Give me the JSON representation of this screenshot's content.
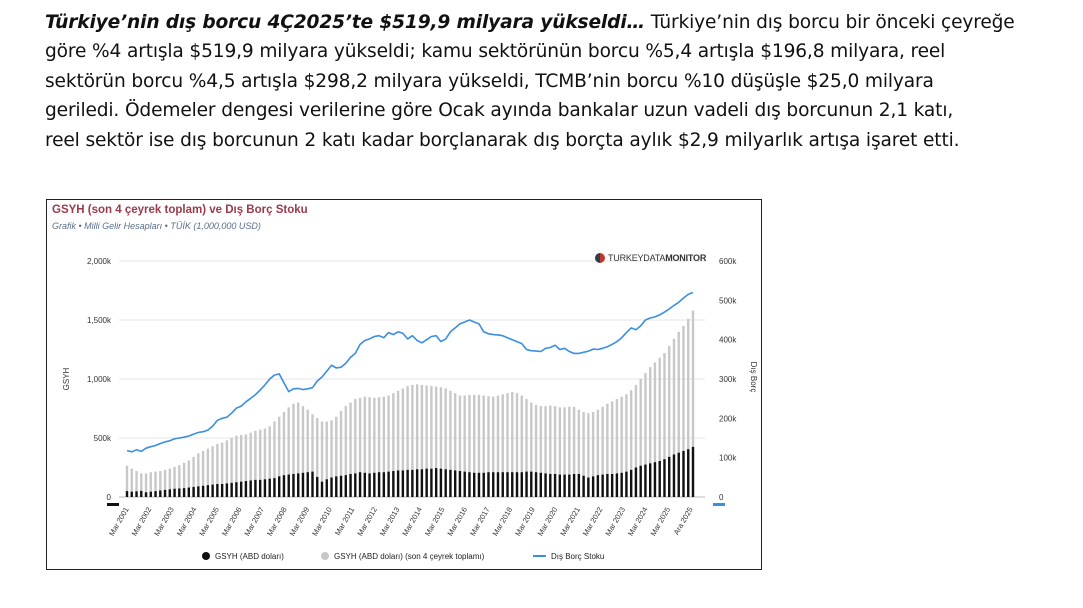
{
  "paragraph": {
    "line1_bold": "Türkiye’nin dış borcu 4Ç2025’te $519,9 milyara yükseldi…",
    "line1_rest": " Türkiye’nin dış borcu bir önceki çeyreğe",
    "line2": "göre %4 artışla $519,9 milyara yükseldi; kamu sektörünün borcu %5,4 artışla $196,8 milyara, reel",
    "line3": "sektörün borcu %4,5 artışla $298,2 milyara yükseldi, TCMB’nin borcu %10 düşüşle $25,0 milyara",
    "line4": "geriledi. Ödemeler dengesi verilerine göre Ocak ayında bankalar uzun vadeli dış borcunun 2,1 katı,",
    "line5": "reel sektör ise dış borcunun 2 katı kadar borçlanarak dış borçta aylık $2,9 milyarlık artışa işaret etti."
  },
  "brand": {
    "light": "TURKEYDATA",
    "bold": "MONITOR"
  },
  "colors": {
    "accent_title": "#9b3a4a",
    "subtitle": "#5a6f8c",
    "quarterly_bar": "#111111",
    "annual_bar": "#c8c8c8",
    "debt_line": "#3b8ee0"
  },
  "chart_data": {
    "type": "bar",
    "title": "GSYH (son 4 çeyrek toplam) ve Dış Borç Stoku",
    "subtitle": "Grafik • Milli Gelir Hesapları • TÜİK (1,000,000 USD)",
    "ylabel_left": "GSYH",
    "ylabel_right": "Dış Borç",
    "ylim_left": [
      0,
      2000000
    ],
    "ylim_right": [
      0,
      600000
    ],
    "left_ticks": [
      "0",
      "500k",
      "1,000k",
      "1,500k",
      "2,000k"
    ],
    "right_ticks": [
      "0",
      "100k",
      "200k",
      "300k",
      "400k",
      "500k",
      "600k"
    ],
    "x_tick_labels": [
      "Mar 2001",
      "Mar 2002",
      "Mar 2003",
      "Mar 2004",
      "Mar 2005",
      "Mar 2006",
      "Mar 2007",
      "Mar 2008",
      "Mar 2009",
      "Mar 2010",
      "Mar 2011",
      "Mar 2012",
      "Mar 2013",
      "Mar 2014",
      "Mar 2015",
      "Mar 2016",
      "Mar 2017",
      "Mar 2018",
      "Mar 2019",
      "Mar 2020",
      "Mar 2021",
      "Mar 2022",
      "Mar 2023",
      "Mar 2024",
      "Mar 2025",
      "Ara 2025"
    ],
    "legend_position": "bottom",
    "grid": true,
    "series": [
      {
        "name": "GSYH (ABD doları)",
        "type": "bar",
        "axis": "left",
        "color": "#111111",
        "values": [
          50000,
          45000,
          48000,
          52000,
          40000,
          45000,
          50000,
          55000,
          60000,
          65000,
          70000,
          72000,
          75000,
          80000,
          85000,
          90000,
          95000,
          100000,
          105000,
          110000,
          110000,
          115000,
          120000,
          125000,
          130000,
          135000,
          140000,
          145000,
          145000,
          150000,
          155000,
          160000,
          175000,
          185000,
          190000,
          195000,
          200000,
          205000,
          210000,
          215000,
          170000,
          130000,
          150000,
          165000,
          175000,
          180000,
          185000,
          195000,
          200000,
          210000,
          205000,
          200000,
          205000,
          210000,
          210000,
          215000,
          220000,
          225000,
          225000,
          230000,
          230000,
          235000,
          235000,
          240000,
          240000,
          245000,
          240000,
          235000,
          230000,
          225000,
          220000,
          215000,
          210000,
          205000,
          205000,
          205000,
          210000,
          210000,
          210000,
          210000,
          210000,
          210000,
          210000,
          210000,
          215000,
          215000,
          210000,
          205000,
          200000,
          195000,
          195000,
          190000,
          190000,
          190000,
          195000,
          195000,
          180000,
          165000,
          175000,
          185000,
          190000,
          195000,
          195000,
          200000,
          205000,
          215000,
          230000,
          250000,
          265000,
          275000,
          285000,
          295000,
          305000,
          320000,
          340000,
          360000,
          375000,
          390000,
          405000,
          425000
        ]
      },
      {
        "name": "GSYH (ABD doları) (son 4 çeyrek toplamı)",
        "type": "bar",
        "axis": "left",
        "color": "#c8c8c8",
        "values": [
          265000,
          240000,
          220000,
          200000,
          200000,
          210000,
          215000,
          220000,
          230000,
          240000,
          255000,
          270000,
          290000,
          310000,
          340000,
          370000,
          390000,
          410000,
          430000,
          450000,
          460000,
          480000,
          500000,
          520000,
          525000,
          530000,
          545000,
          560000,
          570000,
          580000,
          600000,
          640000,
          680000,
          720000,
          760000,
          790000,
          800000,
          770000,
          740000,
          700000,
          670000,
          640000,
          640000,
          650000,
          680000,
          730000,
          770000,
          800000,
          830000,
          840000,
          850000,
          845000,
          840000,
          845000,
          850000,
          860000,
          880000,
          900000,
          920000,
          940000,
          950000,
          955000,
          950000,
          945000,
          940000,
          935000,
          930000,
          920000,
          900000,
          880000,
          860000,
          860000,
          865000,
          865000,
          865000,
          860000,
          855000,
          850000,
          860000,
          870000,
          880000,
          890000,
          880000,
          860000,
          830000,
          800000,
          780000,
          770000,
          770000,
          775000,
          770000,
          760000,
          760000,
          765000,
          765000,
          740000,
          720000,
          710000,
          720000,
          740000,
          765000,
          790000,
          810000,
          830000,
          850000,
          870000,
          905000,
          950000,
          1000000,
          1050000,
          1100000,
          1140000,
          1180000,
          1220000,
          1280000,
          1340000,
          1400000,
          1450000,
          1510000,
          1580000
        ]
      },
      {
        "name": "Dış Borç Stoku",
        "type": "line",
        "axis": "right",
        "color": "#3b8ee0",
        "values": [
          118000,
          115000,
          120000,
          116000,
          124000,
          128000,
          131000,
          136000,
          140000,
          143000,
          148000,
          150000,
          152000,
          155000,
          160000,
          164000,
          166000,
          170000,
          180000,
          195000,
          200000,
          203000,
          213000,
          226000,
          231000,
          242000,
          251000,
          260000,
          272000,
          285000,
          300000,
          310000,
          313000,
          290000,
          268000,
          275000,
          276000,
          273000,
          275000,
          278000,
          295000,
          305000,
          320000,
          335000,
          328000,
          330000,
          340000,
          355000,
          365000,
          388000,
          398000,
          402000,
          408000,
          410000,
          405000,
          418000,
          413000,
          420000,
          416000,
          402000,
          410000,
          398000,
          392000,
          400000,
          408000,
          410000,
          395000,
          402000,
          420000,
          430000,
          440000,
          445000,
          450000,
          445000,
          440000,
          420000,
          415000,
          413000,
          412000,
          410000,
          405000,
          400000,
          395000,
          390000,
          375000,
          372000,
          371000,
          370000,
          378000,
          380000,
          386000,
          375000,
          378000,
          370000,
          365000,
          365000,
          368000,
          371000,
          376000,
          375000,
          378000,
          382000,
          388000,
          395000,
          405000,
          418000,
          430000,
          425000,
          435000,
          450000,
          455000,
          458000,
          463000,
          470000,
          478000,
          487000,
          495000,
          506000,
          515000,
          520000
        ]
      }
    ]
  }
}
